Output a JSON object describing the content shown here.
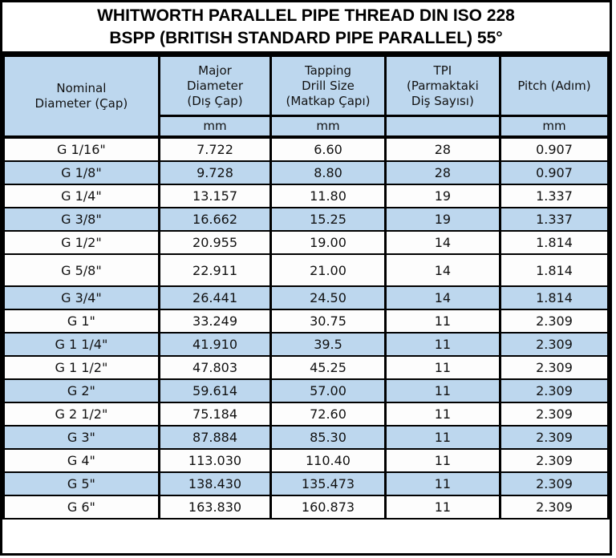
{
  "title": {
    "line1": "WHITWORTH PARALLEL PIPE THREAD DIN ISO 228",
    "line2": "BSPP (BRITISH STANDARD PIPE PARALLEL) 55°"
  },
  "colors": {
    "header_fill": "#bdd7ee",
    "shaded_row_fill": "#bdd7ee",
    "border": "#000000",
    "text": "#111111"
  },
  "table": {
    "columns": [
      {
        "label": "Nominal\nDiameter (Çap)"
      },
      {
        "label": "Major\nDiameter\n(Dış Çap)"
      },
      {
        "label": "Tapping\nDrill Size\n(Matkap Çapı)"
      },
      {
        "label": "TPI\n(Parmaktaki\nDiş Sayısı)"
      },
      {
        "label": "Pitch (Adım)"
      }
    ],
    "units": [
      "mm",
      "mm",
      "",
      "mm"
    ],
    "rows": [
      {
        "size": "G 1/16\"",
        "major": "7.722",
        "drill": "6.60",
        "tpi": "28",
        "pitch": "0.907",
        "shaded": false,
        "tall": false
      },
      {
        "size": "G 1/8\"",
        "major": "9.728",
        "drill": "8.80",
        "tpi": "28",
        "pitch": "0.907",
        "shaded": true,
        "tall": false
      },
      {
        "size": "G 1/4\"",
        "major": "13.157",
        "drill": "11.80",
        "tpi": "19",
        "pitch": "1.337",
        "shaded": false,
        "tall": false
      },
      {
        "size": "G 3/8\"",
        "major": "16.662",
        "drill": "15.25",
        "tpi": "19",
        "pitch": "1.337",
        "shaded": true,
        "tall": false
      },
      {
        "size": "G 1/2\"",
        "major": "20.955",
        "drill": "19.00",
        "tpi": "14",
        "pitch": "1.814",
        "shaded": false,
        "tall": false
      },
      {
        "size": "G 5/8\"",
        "major": "22.911",
        "drill": "21.00",
        "tpi": "14",
        "pitch": "1.814",
        "shaded": false,
        "tall": true
      },
      {
        "size": "G 3/4\"",
        "major": "26.441",
        "drill": "24.50",
        "tpi": "14",
        "pitch": "1.814",
        "shaded": true,
        "tall": false
      },
      {
        "size": "G 1\"",
        "major": "33.249",
        "drill": "30.75",
        "tpi": "11",
        "pitch": "2.309",
        "shaded": false,
        "tall": false
      },
      {
        "size": "G 1 1/4\"",
        "major": "41.910",
        "drill": "39.5",
        "tpi": "11",
        "pitch": "2.309",
        "shaded": true,
        "tall": false
      },
      {
        "size": "G 1 1/2\"",
        "major": "47.803",
        "drill": "45.25",
        "tpi": "11",
        "pitch": "2.309",
        "shaded": false,
        "tall": false
      },
      {
        "size": "G 2\"",
        "major": "59.614",
        "drill": "57.00",
        "tpi": "11",
        "pitch": "2.309",
        "shaded": true,
        "tall": false
      },
      {
        "size": "G 2 1/2\"",
        "major": "75.184",
        "drill": "72.60",
        "tpi": "11",
        "pitch": "2.309",
        "shaded": false,
        "tall": false
      },
      {
        "size": "G 3\"",
        "major": "87.884",
        "drill": "85.30",
        "tpi": "11",
        "pitch": "2.309",
        "shaded": true,
        "tall": false
      },
      {
        "size": "G 4\"",
        "major": "113.030",
        "drill": "110.40",
        "tpi": "11",
        "pitch": "2.309",
        "shaded": false,
        "tall": false
      },
      {
        "size": "G 5\"",
        "major": "138.430",
        "drill": "135.473",
        "tpi": "11",
        "pitch": "2.309",
        "shaded": true,
        "tall": false
      },
      {
        "size": "G 6\"",
        "major": "163.830",
        "drill": "160.873",
        "tpi": "11",
        "pitch": "2.309",
        "shaded": false,
        "tall": false
      }
    ]
  }
}
